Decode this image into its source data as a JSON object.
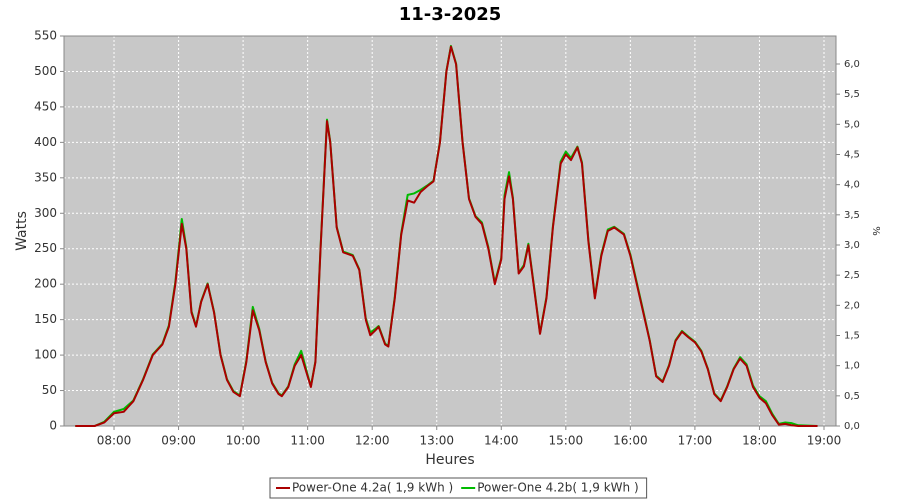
{
  "chart_data": {
    "type": "line",
    "title": "11-3-2025",
    "x_label": "Heures",
    "y_label": "Watts",
    "y2_label": "%",
    "x": [
      7.4,
      7.7,
      7.85,
      8.0,
      8.15,
      8.3,
      8.45,
      8.6,
      8.75,
      8.85,
      8.95,
      9.05,
      9.12,
      9.2,
      9.27,
      9.35,
      9.45,
      9.55,
      9.65,
      9.75,
      9.85,
      9.95,
      10.05,
      10.15,
      10.25,
      10.35,
      10.45,
      10.55,
      10.6,
      10.7,
      10.8,
      10.9,
      11.0,
      11.05,
      11.12,
      11.2,
      11.3,
      11.35,
      11.45,
      11.55,
      11.7,
      11.8,
      11.9,
      11.97,
      12.05,
      12.1,
      12.2,
      12.25,
      12.35,
      12.45,
      12.55,
      12.65,
      12.75,
      12.85,
      12.95,
      13.05,
      13.15,
      13.22,
      13.3,
      13.4,
      13.5,
      13.6,
      13.7,
      13.8,
      13.9,
      14.0,
      14.05,
      14.12,
      14.18,
      14.27,
      14.35,
      14.42,
      14.5,
      14.6,
      14.7,
      14.8,
      14.92,
      15.0,
      15.08,
      15.18,
      15.25,
      15.35,
      15.45,
      15.55,
      15.65,
      15.75,
      15.9,
      16.0,
      16.1,
      16.2,
      16.3,
      16.4,
      16.5,
      16.6,
      16.7,
      16.8,
      16.9,
      17.0,
      17.1,
      17.2,
      17.3,
      17.4,
      17.5,
      17.6,
      17.7,
      17.8,
      17.9,
      18.0,
      18.1,
      18.2,
      18.3,
      18.4,
      18.5,
      18.6,
      18.9
    ],
    "series": [
      {
        "name": "Power-One 4.2b( 1,9 kWh )",
        "color": "#00bb00",
        "values": [
          0,
          0,
          6,
          20,
          24,
          36,
          66,
          101,
          116,
          142,
          203,
          292,
          252,
          162,
          141,
          176,
          201,
          161,
          101,
          66,
          49,
          43,
          92,
          168,
          137,
          91,
          61,
          46,
          43,
          56,
          87,
          106,
          72,
          56,
          91,
          252,
          432,
          401,
          281,
          246,
          241,
          221,
          152,
          132,
          137,
          141,
          116,
          113,
          182,
          272,
          326,
          328,
          333,
          339,
          346,
          401,
          501,
          536,
          511,
          401,
          321,
          296,
          287,
          252,
          202,
          237,
          325,
          358,
          322,
          216,
          227,
          257,
          202,
          131,
          182,
          282,
          373,
          387,
          378,
          394,
          372,
          262,
          182,
          242,
          277,
          281,
          271,
          242,
          202,
          162,
          121,
          71,
          63,
          86,
          121,
          134,
          126,
          119,
          106,
          81,
          46,
          36,
          56,
          81,
          97,
          87,
          57,
          42,
          35,
          17,
          3,
          5,
          4,
          1,
          0
        ]
      },
      {
        "name": "Power-One 4.2a( 1,9 kWh )",
        "color": "#aa0000",
        "values": [
          0,
          0,
          5,
          18,
          20,
          35,
          65,
          100,
          115,
          140,
          200,
          285,
          250,
          160,
          140,
          175,
          200,
          160,
          100,
          65,
          48,
          42,
          90,
          163,
          135,
          90,
          60,
          45,
          42,
          55,
          85,
          100,
          70,
          55,
          90,
          250,
          430,
          400,
          280,
          245,
          240,
          220,
          150,
          128,
          135,
          140,
          115,
          112,
          180,
          270,
          318,
          315,
          330,
          338,
          345,
          400,
          500,
          535,
          510,
          400,
          320,
          295,
          285,
          250,
          200,
          235,
          320,
          352,
          320,
          215,
          225,
          255,
          200,
          130,
          180,
          280,
          370,
          383,
          375,
          393,
          370,
          260,
          180,
          240,
          275,
          280,
          270,
          240,
          200,
          160,
          120,
          70,
          62,
          85,
          120,
          133,
          125,
          118,
          105,
          80,
          45,
          35,
          55,
          80,
          95,
          85,
          55,
          40,
          32,
          15,
          2,
          3,
          1,
          0,
          0
        ]
      }
    ],
    "legend_order": [
      1,
      0
    ],
    "xlim": [
      7.225,
      19.186
    ],
    "xticks": [
      {
        "value": 8,
        "label": "08:00"
      },
      {
        "value": 9,
        "label": "09:00"
      },
      {
        "value": 10,
        "label": "10:00"
      },
      {
        "value": 11,
        "label": "11:00"
      },
      {
        "value": 12,
        "label": "12:00"
      },
      {
        "value": 13,
        "label": "13:00"
      },
      {
        "value": 14,
        "label": "14:00"
      },
      {
        "value": 15,
        "label": "15:00"
      },
      {
        "value": 16,
        "label": "16:00"
      },
      {
        "value": 17,
        "label": "17:00"
      },
      {
        "value": 18,
        "label": "18:00"
      },
      {
        "value": 19,
        "label": "19:00"
      }
    ],
    "ylim": [
      0,
      550
    ],
    "yticks": [
      0,
      50,
      100,
      150,
      200,
      250,
      300,
      350,
      400,
      450,
      500,
      550
    ],
    "y2lim": [
      0,
      6.464
    ],
    "y2ticks": [
      {
        "value": 0,
        "label": "0,0"
      },
      {
        "value": 0.5,
        "label": "0,5"
      },
      {
        "value": 1,
        "label": "1,0"
      },
      {
        "value": 1.5,
        "label": "1,5"
      },
      {
        "value": 2,
        "label": "2,0"
      },
      {
        "value": 2.5,
        "label": "2,5"
      },
      {
        "value": 3,
        "label": "3,0"
      },
      {
        "value": 3.5,
        "label": "3,5"
      },
      {
        "value": 4,
        "label": "4,0"
      },
      {
        "value": 4.5,
        "label": "4,5"
      },
      {
        "value": 5,
        "label": "5,0"
      },
      {
        "value": 5.5,
        "label": "5,5"
      },
      {
        "value": 6,
        "label": "6,0"
      }
    ],
    "grid": true,
    "legend_position": "bottom"
  }
}
